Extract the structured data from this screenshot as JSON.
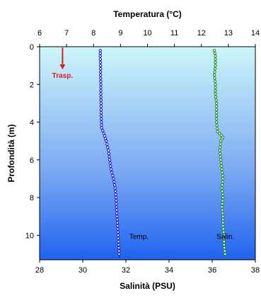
{
  "chart_data": {
    "type": "line",
    "top_axis": {
      "title": "Temperatura (°C)",
      "range": [
        6,
        14
      ],
      "ticks": [
        "6",
        "7",
        "8",
        "9",
        "10",
        "11",
        "12",
        "13",
        "14"
      ]
    },
    "bottom_axis": {
      "title": "Salinità (PSU)",
      "range": [
        28,
        38
      ],
      "ticks": [
        "28",
        "30",
        "32",
        "34",
        "36",
        "38"
      ]
    },
    "y_axis": {
      "title": "Profondità (m)",
      "range": [
        0,
        11.3
      ],
      "reversed": true,
      "ticks": [
        "0",
        "2",
        "4",
        "6",
        "8",
        "10"
      ]
    },
    "background_gradient": [
      "#cdf7fa",
      "#79a6f2",
      "#1f63f0"
    ],
    "series": [
      {
        "name": "Temp.",
        "axis": "top",
        "color": "#1a1acc",
        "points": [
          [
            8.25,
            0.2
          ],
          [
            8.25,
            0.5
          ],
          [
            8.26,
            1.0
          ],
          [
            8.26,
            1.5
          ],
          [
            8.27,
            2.0
          ],
          [
            8.27,
            2.5
          ],
          [
            8.28,
            3.0
          ],
          [
            8.28,
            3.5
          ],
          [
            8.29,
            4.0
          ],
          [
            8.3,
            4.3
          ],
          [
            8.38,
            4.6
          ],
          [
            8.47,
            5.0
          ],
          [
            8.55,
            5.5
          ],
          [
            8.6,
            6.0
          ],
          [
            8.65,
            6.5
          ],
          [
            8.74,
            7.0
          ],
          [
            8.8,
            7.5
          ],
          [
            8.83,
            8.0
          ],
          [
            8.85,
            8.5
          ],
          [
            8.87,
            9.0
          ],
          [
            8.89,
            9.5
          ],
          [
            8.91,
            10.0
          ],
          [
            8.93,
            10.5
          ],
          [
            8.95,
            11.0
          ],
          [
            8.96,
            11.2
          ]
        ]
      },
      {
        "name": "Salin.",
        "axis": "bottom",
        "color": "#1f8a1f",
        "points": [
          [
            36.1,
            0.2
          ],
          [
            36.15,
            0.5
          ],
          [
            36.15,
            1.0
          ],
          [
            36.1,
            1.5
          ],
          [
            36.15,
            2.0
          ],
          [
            36.15,
            2.5
          ],
          [
            36.2,
            3.0
          ],
          [
            36.2,
            3.5
          ],
          [
            36.2,
            4.0
          ],
          [
            36.25,
            4.5
          ],
          [
            36.5,
            4.8
          ],
          [
            36.4,
            5.0
          ],
          [
            36.35,
            5.5
          ],
          [
            36.4,
            6.0
          ],
          [
            36.45,
            6.5
          ],
          [
            36.5,
            7.0
          ],
          [
            36.45,
            7.5
          ],
          [
            36.5,
            8.0
          ],
          [
            36.45,
            8.5
          ],
          [
            36.5,
            9.0
          ],
          [
            36.5,
            9.5
          ],
          [
            36.55,
            10.0
          ],
          [
            36.55,
            10.5
          ],
          [
            36.6,
            11.0
          ],
          [
            36.6,
            11.2
          ]
        ]
      }
    ],
    "annotation": {
      "text": "Trasp.",
      "color": "#e41a1a",
      "arrow_from_depth": 0.05,
      "arrow_to_depth": 1.2,
      "temperature": 6.85
    }
  }
}
